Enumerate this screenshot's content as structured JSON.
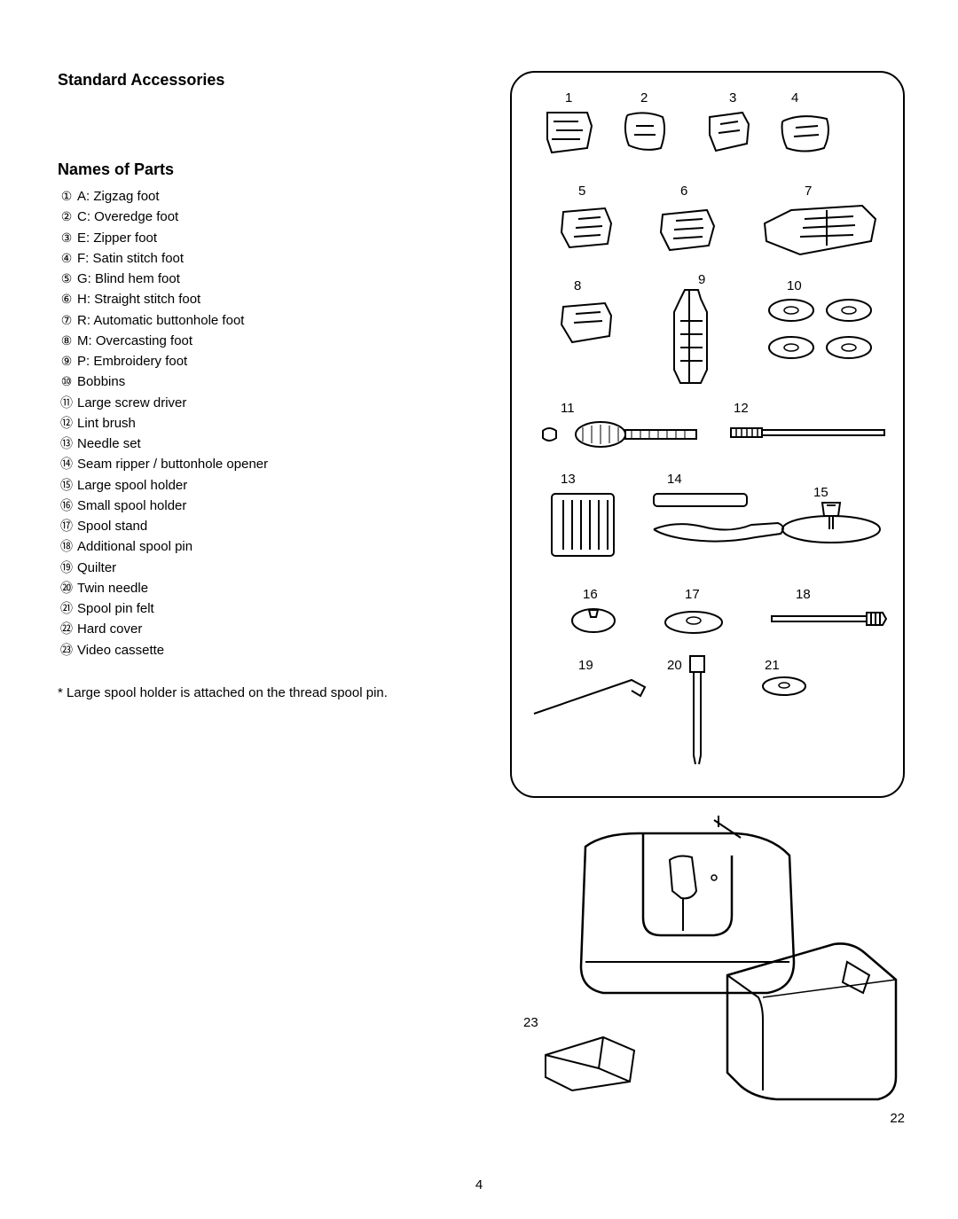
{
  "page_number": "4",
  "heading_main": "Standard Accessories",
  "heading_sub": "Names of Parts",
  "parts": [
    {
      "num": "①",
      "label": "A: Zigzag foot"
    },
    {
      "num": "②",
      "label": "C: Overedge foot"
    },
    {
      "num": "③",
      "label": "E: Zipper foot"
    },
    {
      "num": "④",
      "label": "F: Satin stitch foot"
    },
    {
      "num": "⑤",
      "label": "G: Blind hem foot"
    },
    {
      "num": "⑥",
      "label": "H: Straight stitch foot"
    },
    {
      "num": "⑦",
      "label": "R: Automatic buttonhole foot"
    },
    {
      "num": "⑧",
      "label": "M: Overcasting foot"
    },
    {
      "num": "⑨",
      "label": "P: Embroidery foot"
    },
    {
      "num": "⑩",
      "label": "Bobbins"
    },
    {
      "num": "⑪",
      "label": "Large screw driver"
    },
    {
      "num": "⑫",
      "label": "Lint brush"
    },
    {
      "num": "⑬",
      "label": "Needle set"
    },
    {
      "num": "⑭",
      "label": "Seam ripper / buttonhole opener"
    },
    {
      "num": "⑮",
      "label": "Large spool holder"
    },
    {
      "num": "⑯",
      "label": "Small spool holder"
    },
    {
      "num": "⑰",
      "label": "Spool stand"
    },
    {
      "num": "⑱",
      "label": "Additional spool pin"
    },
    {
      "num": "⑲",
      "label": "Quilter"
    },
    {
      "num": "⑳",
      "label": "Twin needle"
    },
    {
      "num": "㉑",
      "label": "Spool pin felt"
    },
    {
      "num": "㉒",
      "label": "Hard cover"
    },
    {
      "num": "㉓",
      "label": "Video cassette"
    }
  ],
  "note": "*  Large spool holder is attached on the thread spool pin.",
  "diagram_labels": {
    "n1": "1",
    "n2": "2",
    "n3": "3",
    "n4": "4",
    "n5": "5",
    "n6": "6",
    "n7": "7",
    "n8": "8",
    "n9": "9",
    "n10": "10",
    "n11": "11",
    "n12": "12",
    "n13": "13",
    "n14": "14",
    "n15": "15",
    "n16": "16",
    "n17": "17",
    "n18": "18",
    "n19": "19",
    "n20": "20",
    "n21": "21",
    "n22": "22",
    "n23": "23"
  }
}
